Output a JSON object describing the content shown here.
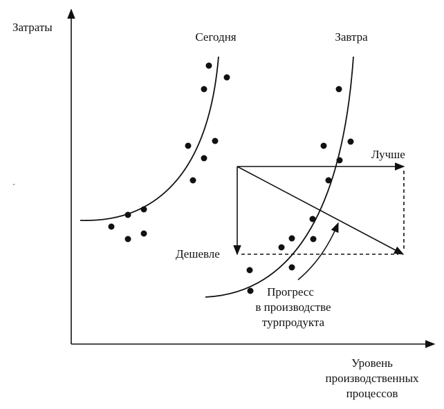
{
  "axes": {
    "y_label": "Затраты",
    "x_label_lines": [
      "Уровень",
      "производственных",
      "процессов"
    ]
  },
  "curves": {
    "today_label": "Сегодня",
    "tomorrow_label": "Завтра"
  },
  "arrows": {
    "better_label": "Лучше",
    "cheaper_label": "Дешевле"
  },
  "progress_label_lines": [
    "Прогресс",
    "в производстве",
    "турпродукта"
  ]
}
